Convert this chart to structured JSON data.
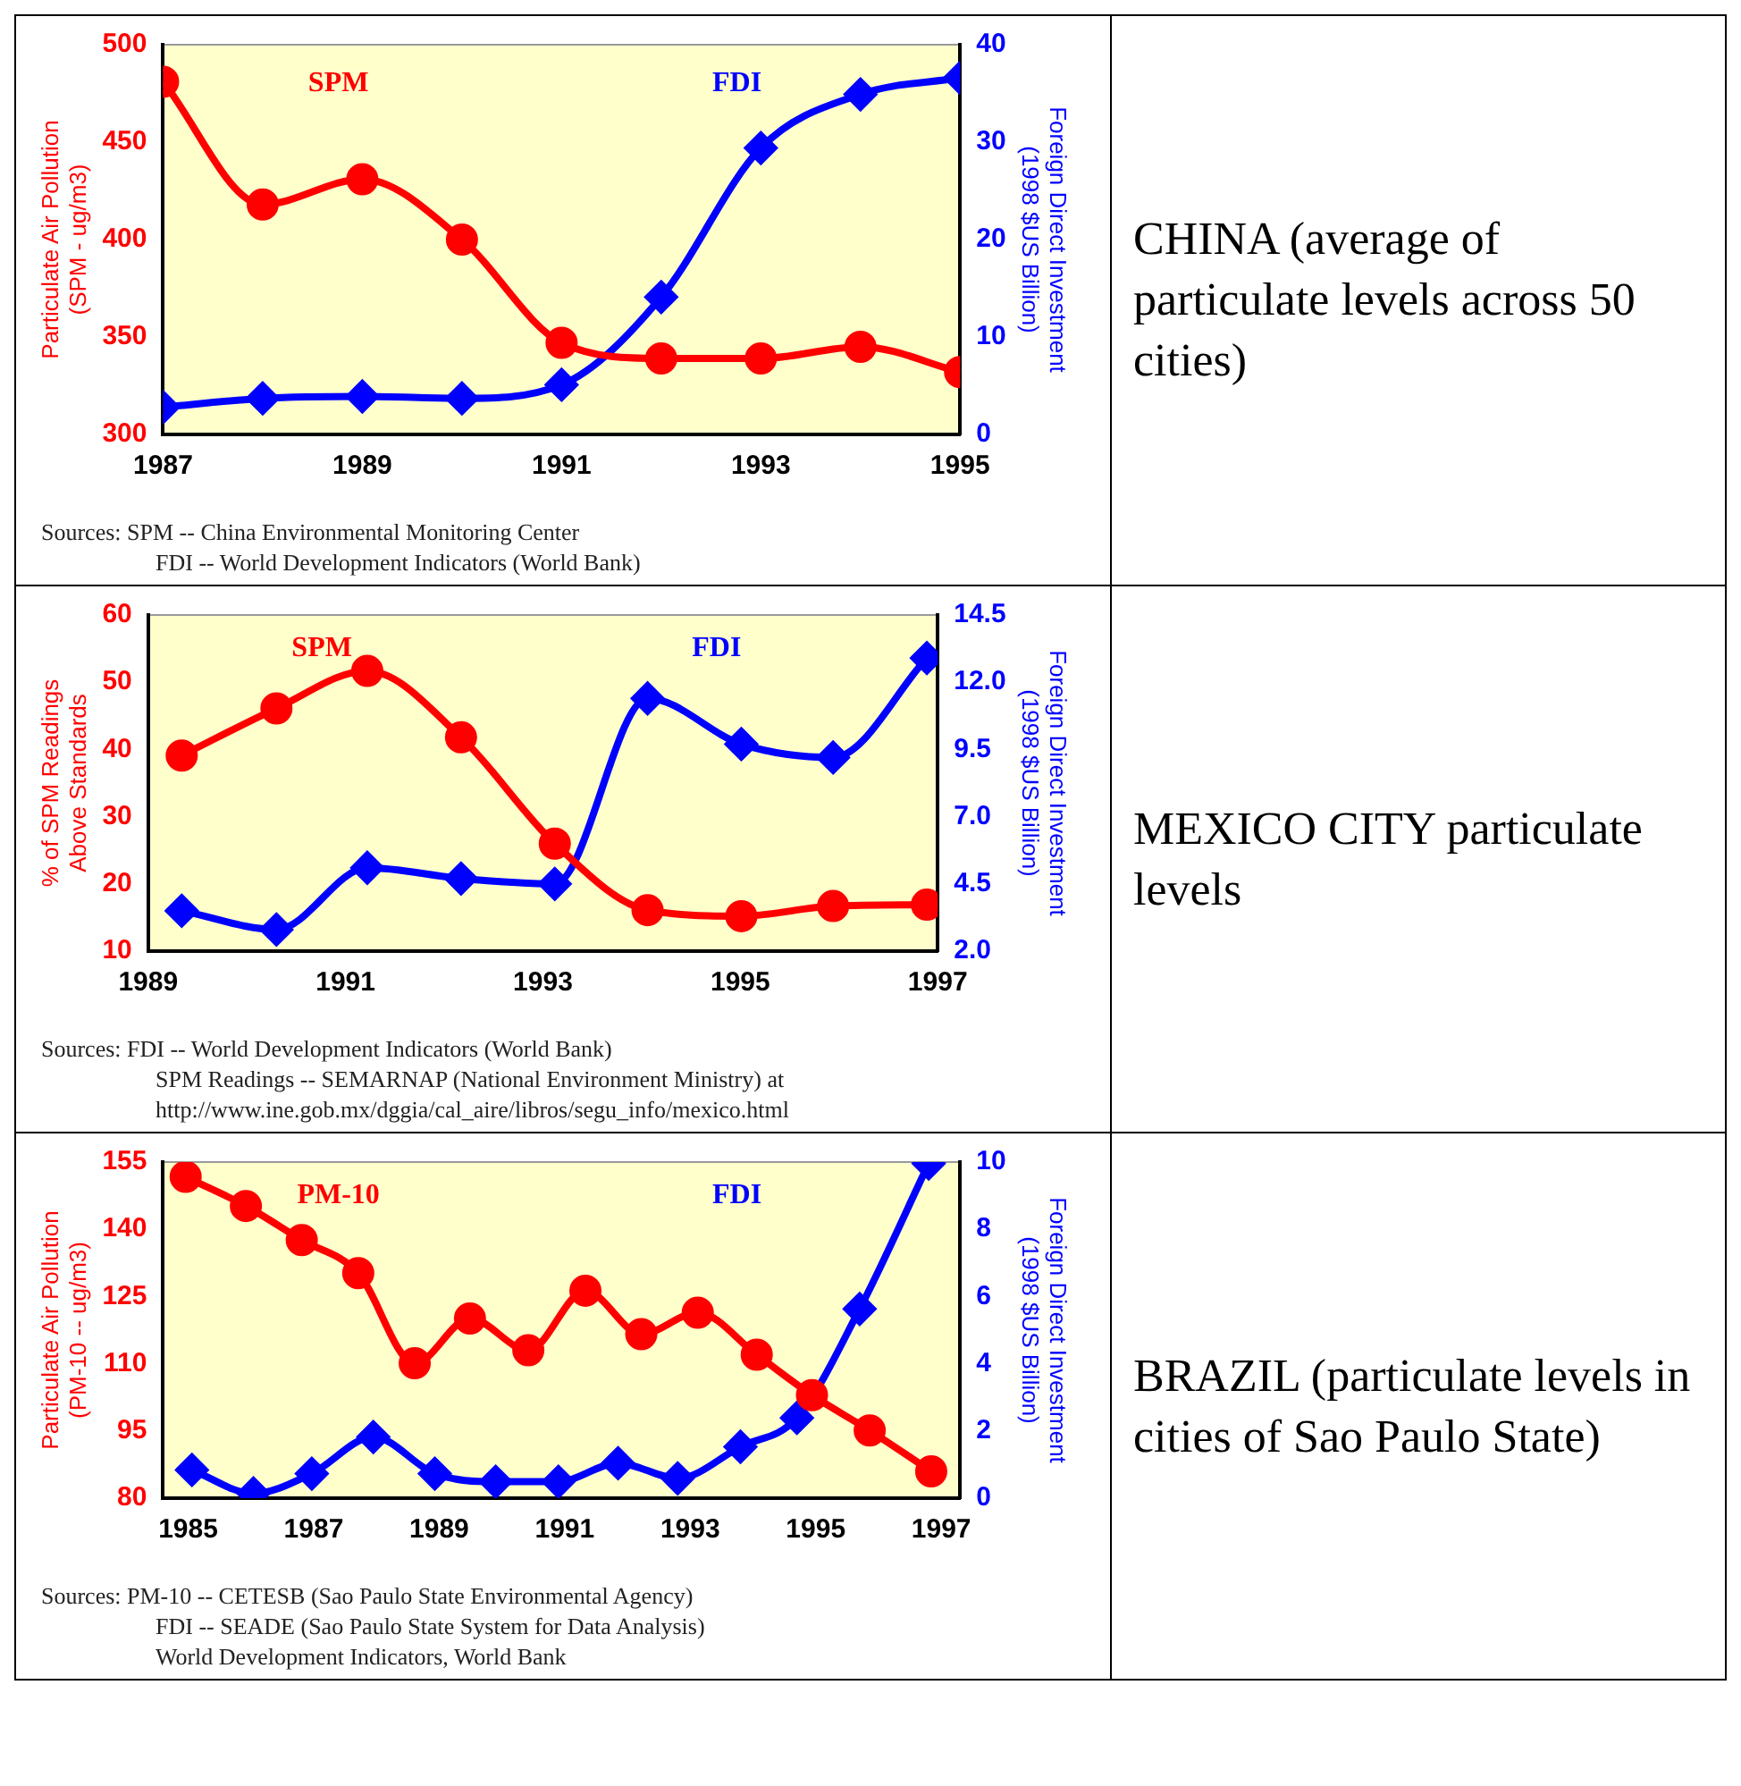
{
  "chart_data": [
    {
      "type": "line",
      "ylabel": "Particulate Air Pollution\n(SPM - ug/m3)",
      "y2label": "Foreign Direct Investment\n(1998 $US Billion)",
      "x": [
        1987,
        1988,
        1989,
        1990,
        1991,
        1992,
        1993,
        1994,
        1995
      ],
      "xlim": [
        1987,
        1995
      ],
      "xticks": [
        1987,
        1989,
        1991,
        1993,
        1995
      ],
      "ylim": [
        300,
        500
      ],
      "yticks": [
        300,
        350,
        400,
        450,
        500
      ],
      "y2lim": [
        0,
        40
      ],
      "y2ticks": [
        0,
        10,
        20,
        30,
        40
      ],
      "series": [
        {
          "name": "SPM",
          "color": "#ff0000",
          "marker": "circle",
          "values": [
            481,
            418,
            431,
            400,
            347,
            339,
            339,
            345,
            332
          ]
        },
        {
          "name": "FDI",
          "color": "#0000ff",
          "marker": "diamond",
          "axis": "y2",
          "values": [
            2.8,
            3.7,
            3.9,
            3.7,
            5.1,
            14.1,
            29.4,
            34.9,
            36.6
          ]
        }
      ],
      "annotations": [
        "CHINA (average of particulate levels across 50 cities)",
        "Sources:  SPM -- China Environmental Monitoring Center",
        "FDI  --  World Development Indicators (World Bank)"
      ]
    },
    {
      "type": "line",
      "ylabel": "% of SPM Readings\nAbove Standards",
      "y2label": "Foreign Direct Investment\n(1998 $US Billion)",
      "x": [
        1989.34,
        1990.3,
        1991.22,
        1992.17,
        1993.12,
        1994.06,
        1995.01,
        1995.94,
        1996.89
      ],
      "xlim": [
        1989,
        1997
      ],
      "xticks": [
        1989,
        1991,
        1993,
        1995,
        1997
      ],
      "ylim": [
        10,
        60
      ],
      "yticks": [
        10,
        20,
        30,
        40,
        50,
        60
      ],
      "y2lim": [
        2,
        14.5
      ],
      "y2ticks": [
        {
          "value": 2,
          "label": "2.0"
        },
        {
          "value": 4.5,
          "label": "4.5"
        },
        {
          "value": 7,
          "label": "7.0"
        },
        {
          "value": 9.5,
          "label": "9.5"
        },
        {
          "value": 12,
          "label": "12.0"
        },
        {
          "value": 14.5,
          "label": "14.5"
        }
      ],
      "series": [
        {
          "name": "SPM",
          "color": "#ff0000",
          "marker": "circle",
          "values": [
            39.1,
            46.1,
            51.7,
            41.8,
            26.0,
            16.1,
            15.2,
            16.7,
            16.9
          ]
        },
        {
          "name": "FDI",
          "color": "#0000ff",
          "marker": "diamond",
          "axis": "y2",
          "values": [
            3.5,
            2.8,
            5.1,
            4.7,
            4.5,
            11.4,
            9.7,
            9.2,
            12.9
          ]
        }
      ],
      "annotations": [
        "MEXICO CITY particulate levels",
        "Sources:  FDI -- World Development Indicators (World Bank)",
        "SPM Readings -- SEMARNAP (National Environment Ministry) at",
        "http://www.ine.gob.mx/dggia/cal_aire/libros/segu_info/mexico.html"
      ]
    },
    {
      "type": "line",
      "ylabel": "Particulate Air Pollution\n(PM-10 -- ug/m3)",
      "y2label": "Foreign Direct Investment\n(1998 $US Billion)",
      "xlim": [
        1984.6,
        1997.3
      ],
      "xticks": [
        1985,
        1987,
        1989,
        1991,
        1993,
        1995,
        1997
      ],
      "ylim": [
        80,
        155
      ],
      "yticks": [
        80,
        95,
        110,
        125,
        140,
        155
      ],
      "y2lim": [
        0,
        10
      ],
      "y2ticks": [
        0,
        2,
        4,
        6,
        8,
        10
      ],
      "series": [
        {
          "name": "PM-10",
          "color": "#ff0000",
          "marker": "circle",
          "x": [
            1984.96,
            1985.92,
            1986.81,
            1987.71,
            1988.61,
            1989.49,
            1990.42,
            1991.33,
            1992.22,
            1993.12,
            1994.06,
            1994.94,
            1995.86,
            1996.84
          ],
          "values": [
            151.7,
            145.2,
            137.6,
            130.2,
            110.1,
            120.1,
            113.0,
            126.3,
            116.6,
            121.4,
            112.0,
            103.0,
            95.1,
            86.0
          ]
        },
        {
          "name": "FDI",
          "color": "#0000ff",
          "marker": "diamond",
          "axis": "y2",
          "x": [
            1985.06,
            1986.04,
            1986.97,
            1987.95,
            1988.93,
            1989.9,
            1990.9,
            1991.85,
            1992.8,
            1993.8,
            1994.7,
            1995.7,
            1996.8
          ],
          "values": [
            0.84,
            0.14,
            0.73,
            1.82,
            0.73,
            0.49,
            0.49,
            1.04,
            0.59,
            1.53,
            2.39,
            5.63,
            9.96
          ]
        }
      ],
      "annotations": [
        "BRAZIL (particulate levels in cities of Sao Paulo State)",
        "Sources:  PM-10 -- CETESB (Sao Paulo State Environmental Agency)",
        "FDI --  SEADE (Sao Paulo State System for Data Analysis)",
        "World Development Indicators, World Bank"
      ]
    }
  ]
}
